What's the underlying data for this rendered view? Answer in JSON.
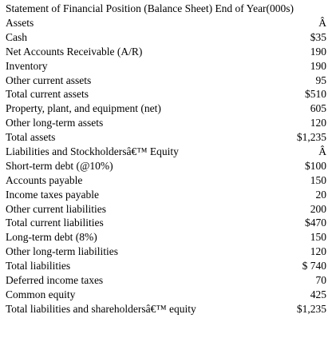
{
  "title": "Statement of Financial Position (Balance Sheet) End of Year(000s)",
  "rows": [
    {
      "label": "Assets",
      "value": "Â"
    },
    {
      "label": "Cash",
      "value": "$35"
    },
    {
      "label": "Net Accounts Receivable (A/R)",
      "value": "190"
    },
    {
      "label": "Inventory",
      "value": "190"
    },
    {
      "label": "Other current assets",
      "value": "95"
    },
    {
      "label": "Total current assets",
      "value": "$510"
    },
    {
      "label": "Property, plant, and equipment (net)",
      "value": "605"
    },
    {
      "label": "Other long-term assets",
      "value": "120"
    },
    {
      "label": "Total assets",
      "value": "$1,235"
    },
    {
      "label": "Liabilities and Stockholdersâ€™ Equity",
      "value": "Â"
    },
    {
      "label": "Short-term debt (@10%)",
      "value": "$100"
    },
    {
      "label": "Accounts payable",
      "value": "150"
    },
    {
      "label": "Income taxes payable",
      "value": "20"
    },
    {
      "label": "Other current liabilities",
      "value": "200"
    },
    {
      "label": "Total current liabilities",
      "value": "$470"
    },
    {
      "label": "Long-term debt (8%)",
      "value": "150"
    },
    {
      "label": "Other long-term liabilities",
      "value": "120"
    },
    {
      "label": "Total liabilities",
      "value": "$ 740"
    },
    {
      "label": "Deferred income taxes",
      "value": "70"
    },
    {
      "label": "Common equity",
      "value": "425"
    },
    {
      "label": "Total liabilities and shareholdersâ€™ equity",
      "value": "$1,235"
    }
  ]
}
